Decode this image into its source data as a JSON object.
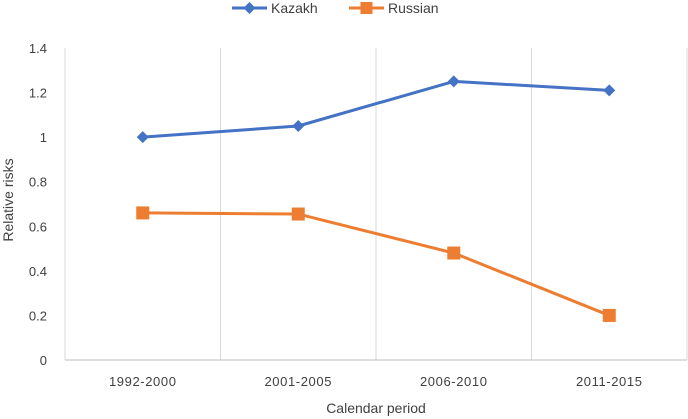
{
  "chart_data": {
    "type": "line",
    "xlabel": "Calendar period",
    "ylabel": "Relative risks",
    "categories": [
      "1992-2000",
      "2001-2005",
      "2006-2010",
      "2011-2015"
    ],
    "ylim": [
      0,
      1.4
    ],
    "yticks": [
      "0",
      "0.2",
      "0.4",
      "0.6",
      "0.8",
      "1",
      "1.2",
      "1.4"
    ],
    "grid": "vertical lines between categories",
    "legend_position": "top",
    "series": [
      {
        "name": "Kazakh",
        "values": [
          1.0,
          1.05,
          1.25,
          1.21
        ],
        "color": "#4472C4",
        "marker": "diamond"
      },
      {
        "name": "Russian",
        "values": [
          0.66,
          0.655,
          0.48,
          0.2
        ],
        "color": "#ED7D31",
        "marker": "square"
      }
    ]
  }
}
